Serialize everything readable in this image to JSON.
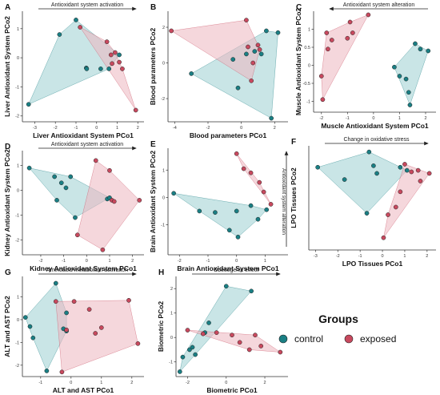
{
  "legend": {
    "title": "Groups",
    "items": [
      {
        "label": "control",
        "color": "#1a7f84"
      },
      {
        "label": "exposed",
        "color": "#c8495e"
      }
    ]
  },
  "colors": {
    "control": "#1a7f84",
    "exposed": "#c8495e",
    "control_fill": "#9ccfd2",
    "exposed_fill": "#ecb7bf"
  },
  "chart_data": [
    {
      "letter": "A",
      "type": "scatter",
      "annotation": "Antioxidant system activation",
      "arrow": "right",
      "xlabel": "Liver Antioxidant System PCo1",
      "ylabel": "Liver Antioxidant System PCo2",
      "xticks": [
        -3,
        -2,
        -1,
        0,
        1,
        2
      ],
      "yticks": [
        -2,
        -1,
        0,
        1
      ],
      "xlim": [
        -3.6,
        2.3
      ],
      "ylim": [
        -2.2,
        1.6
      ],
      "control": [
        [
          -3.3,
          -1.6
        ],
        [
          -1.8,
          0.8
        ],
        [
          -0.5,
          -0.35
        ],
        [
          -0.48,
          -0.38
        ],
        [
          0.2,
          -0.38
        ],
        [
          0.6,
          -0.38
        ],
        [
          1.1,
          0.1
        ],
        [
          -1.0,
          1.3
        ]
      ],
      "exposed": [
        [
          -0.8,
          1.05
        ],
        [
          0.5,
          0.55
        ],
        [
          0.7,
          0.1
        ],
        [
          0.9,
          0.18
        ],
        [
          1.1,
          -0.15
        ],
        [
          1.25,
          -0.38
        ],
        [
          0.75,
          -0.2
        ],
        [
          1.9,
          -1.8
        ]
      ]
    },
    {
      "letter": "B",
      "type": "scatter",
      "annotation": "",
      "arrow": "",
      "xlabel": "Blood parameters PCo1",
      "ylabel": "Blood parameters PCo2",
      "xticks": [
        -4,
        -2,
        0,
        2
      ],
      "yticks": [
        -2,
        0,
        2
      ],
      "xlim": [
        -4.4,
        2.8
      ],
      "ylim": [
        -3.3,
        2.9
      ],
      "control": [
        [
          -3.0,
          -0.6
        ],
        [
          -0.5,
          0.2
        ],
        [
          -0.2,
          -1.4
        ],
        [
          0.3,
          0.5
        ],
        [
          0.8,
          0.65
        ],
        [
          1.2,
          0.5
        ],
        [
          1.5,
          1.8
        ],
        [
          2.2,
          1.7
        ],
        [
          1.8,
          -3.1
        ]
      ],
      "exposed": [
        [
          -4.2,
          1.8
        ],
        [
          0.3,
          2.4
        ],
        [
          1.0,
          1.0
        ],
        [
          0.4,
          0.9
        ],
        [
          1.1,
          0.75
        ],
        [
          0.7,
          0.0
        ],
        [
          0.6,
          -1.0
        ]
      ]
    },
    {
      "letter": "C",
      "type": "scatter",
      "annotation": "Antioxidant system alteration",
      "arrow": "left",
      "xlabel": "Muscle Antioxidant System PCo1",
      "ylabel": "Muscle Antioxidant System PCo2",
      "xticks": [
        -2,
        -1,
        0,
        1,
        2
      ],
      "yticks": [
        -1,
        -0.5,
        0,
        0.5,
        1
      ],
      "xlim": [
        -2.3,
        2.4
      ],
      "ylim": [
        -1.3,
        1.5
      ],
      "control": [
        [
          1.6,
          0.6
        ],
        [
          1.8,
          0.45
        ],
        [
          2.1,
          0.4
        ],
        [
          0.8,
          -0.05
        ],
        [
          1.0,
          -0.3
        ],
        [
          1.25,
          -0.38
        ],
        [
          1.35,
          -0.75
        ],
        [
          1.4,
          -1.1
        ]
      ],
      "exposed": [
        [
          -1.8,
          0.9
        ],
        [
          -1.6,
          0.7
        ],
        [
          -1.75,
          0.45
        ],
        [
          -1.0,
          0.75
        ],
        [
          -0.8,
          0.9
        ],
        [
          -0.9,
          1.2
        ],
        [
          -0.2,
          1.4
        ],
        [
          -2.0,
          -0.3
        ],
        [
          -1.95,
          -0.95
        ]
      ]
    },
    {
      "letter": "D",
      "type": "scatter",
      "annotation": "Antioxidant system activation",
      "arrow": "right",
      "xlabel": "Kidney Antioxidant System PCo1",
      "ylabel": "Kidney Antioxidant System PCo2",
      "xticks": [
        -2,
        -1,
        0,
        1,
        2
      ],
      "yticks": [
        -2,
        -1,
        0,
        1
      ],
      "xlim": [
        -2.8,
        2.5
      ],
      "ylim": [
        -2.6,
        1.6
      ],
      "control": [
        [
          -2.5,
          0.9
        ],
        [
          -1.4,
          0.55
        ],
        [
          -1.1,
          0.3
        ],
        [
          -0.9,
          0.1
        ],
        [
          -1.3,
          -0.4
        ],
        [
          -0.7,
          0.55
        ],
        [
          0.9,
          -0.35
        ],
        [
          1.0,
          -0.3
        ],
        [
          -0.5,
          -1.1
        ]
      ],
      "exposed": [
        [
          0.4,
          1.2
        ],
        [
          1.0,
          0.8
        ],
        [
          1.1,
          -0.4
        ],
        [
          1.2,
          -0.45
        ],
        [
          -0.4,
          -1.8
        ],
        [
          0.7,
          -2.4
        ],
        [
          2.3,
          -0.4
        ]
      ]
    },
    {
      "letter": "E",
      "type": "scatter",
      "annotation": "Antioxidant system alteration",
      "arrow": "up",
      "xlabel": "Brain Antioxidant System PCo1",
      "ylabel": "Brain Antioxidant System PCo2",
      "xticks": [
        -2,
        -1,
        0,
        1
      ],
      "yticks": [
        -1,
        0,
        1
      ],
      "xlim": [
        -2.4,
        1.8
      ],
      "ylim": [
        -2.1,
        1.8
      ],
      "control": [
        [
          -2.2,
          0.15
        ],
        [
          -1.3,
          -0.5
        ],
        [
          -0.75,
          -0.55
        ],
        [
          -0.25,
          -1.2
        ],
        [
          0.0,
          -0.5
        ],
        [
          0.5,
          -0.3
        ],
        [
          0.75,
          -0.8
        ],
        [
          0.05,
          -1.45
        ],
        [
          1.05,
          -0.45
        ]
      ],
      "exposed": [
        [
          0.0,
          1.6
        ],
        [
          0.25,
          1.05
        ],
        [
          0.5,
          0.9
        ],
        [
          0.8,
          0.55
        ],
        [
          0.95,
          0.2
        ],
        [
          1.2,
          -0.25
        ]
      ]
    },
    {
      "letter": "F",
      "type": "scatter",
      "annotation": "Change in oxidative stress",
      "arrow": "right",
      "xlabel": "LPO Tissues PCo1",
      "ylabel": "LPO Tissues PCo2",
      "xticks": [
        -3,
        -2,
        -1,
        0,
        1,
        2
      ],
      "yticks": [],
      "xlim": [
        -3.3,
        2.4
      ],
      "ylim": [
        -2.2,
        1.2
      ],
      "control": [
        [
          -2.9,
          0.5
        ],
        [
          -1.7,
          0.1
        ],
        [
          -0.6,
          1.0
        ],
        [
          -0.4,
          0.55
        ],
        [
          -0.25,
          0.3
        ],
        [
          0.8,
          0.5
        ],
        [
          1.1,
          0.4
        ],
        [
          -0.7,
          -1.0
        ]
      ],
      "exposed": [
        [
          1.0,
          0.6
        ],
        [
          1.3,
          0.35
        ],
        [
          1.6,
          0.4
        ],
        [
          2.1,
          0.3
        ],
        [
          1.7,
          0.05
        ],
        [
          0.8,
          -0.3
        ],
        [
          0.25,
          -1.05
        ],
        [
          0.6,
          -0.8
        ],
        [
          0.05,
          -1.8
        ]
      ]
    },
    {
      "letter": "G",
      "type": "scatter",
      "annotation": "Aminoacid metabolism activation",
      "arrow": "right",
      "xlabel": "ALT and AST PCo1",
      "ylabel": "ALT and AST PCo2",
      "xticks": [
        -1,
        0,
        1,
        2
      ],
      "yticks": [
        -2,
        -1,
        0,
        1
      ],
      "xlim": [
        -1.6,
        2.4
      ],
      "ylim": [
        -2.5,
        1.9
      ],
      "control": [
        [
          -1.5,
          0.1
        ],
        [
          -1.35,
          -0.3
        ],
        [
          -1.25,
          -0.8
        ],
        [
          -0.5,
          1.6
        ],
        [
          -0.25,
          -0.4
        ],
        [
          -0.15,
          -0.5
        ],
        [
          -0.8,
          -2.25
        ],
        [
          -0.15,
          0.3
        ]
      ],
      "exposed": [
        [
          -0.5,
          0.8
        ],
        [
          0.1,
          0.8
        ],
        [
          -0.15,
          -0.45
        ],
        [
          0.6,
          0.45
        ],
        [
          0.8,
          -0.6
        ],
        [
          1.0,
          -0.35
        ],
        [
          1.9,
          0.85
        ],
        [
          2.2,
          -1.05
        ],
        [
          -0.3,
          -2.3
        ]
      ]
    },
    {
      "letter": "H",
      "type": "scatter",
      "annotation": "Obesogenic effect",
      "arrow": "right",
      "xlabel": "Biometric PCo1",
      "ylabel": "Biometric PCo2",
      "xticks": [
        -2,
        0,
        2
      ],
      "yticks": [
        -1,
        0,
        1,
        2
      ],
      "xlim": [
        -2.6,
        3.2
      ],
      "ylim": [
        -1.6,
        2.5
      ],
      "control": [
        [
          -2.4,
          -1.4
        ],
        [
          -2.25,
          -0.8
        ],
        [
          -1.9,
          -0.5
        ],
        [
          -1.75,
          -0.4
        ],
        [
          -1.1,
          0.2
        ],
        [
          -0.9,
          0.6
        ],
        [
          0.0,
          2.1
        ],
        [
          1.3,
          1.9
        ],
        [
          -1.6,
          -0.7
        ]
      ],
      "exposed": [
        [
          -2.0,
          0.3
        ],
        [
          -0.5,
          0.2
        ],
        [
          0.3,
          0.1
        ],
        [
          0.7,
          -0.2
        ],
        [
          1.2,
          -0.5
        ],
        [
          1.8,
          -0.35
        ],
        [
          2.8,
          -0.6
        ],
        [
          1.5,
          0.1
        ],
        [
          -1.2,
          0.15
        ]
      ]
    }
  ]
}
